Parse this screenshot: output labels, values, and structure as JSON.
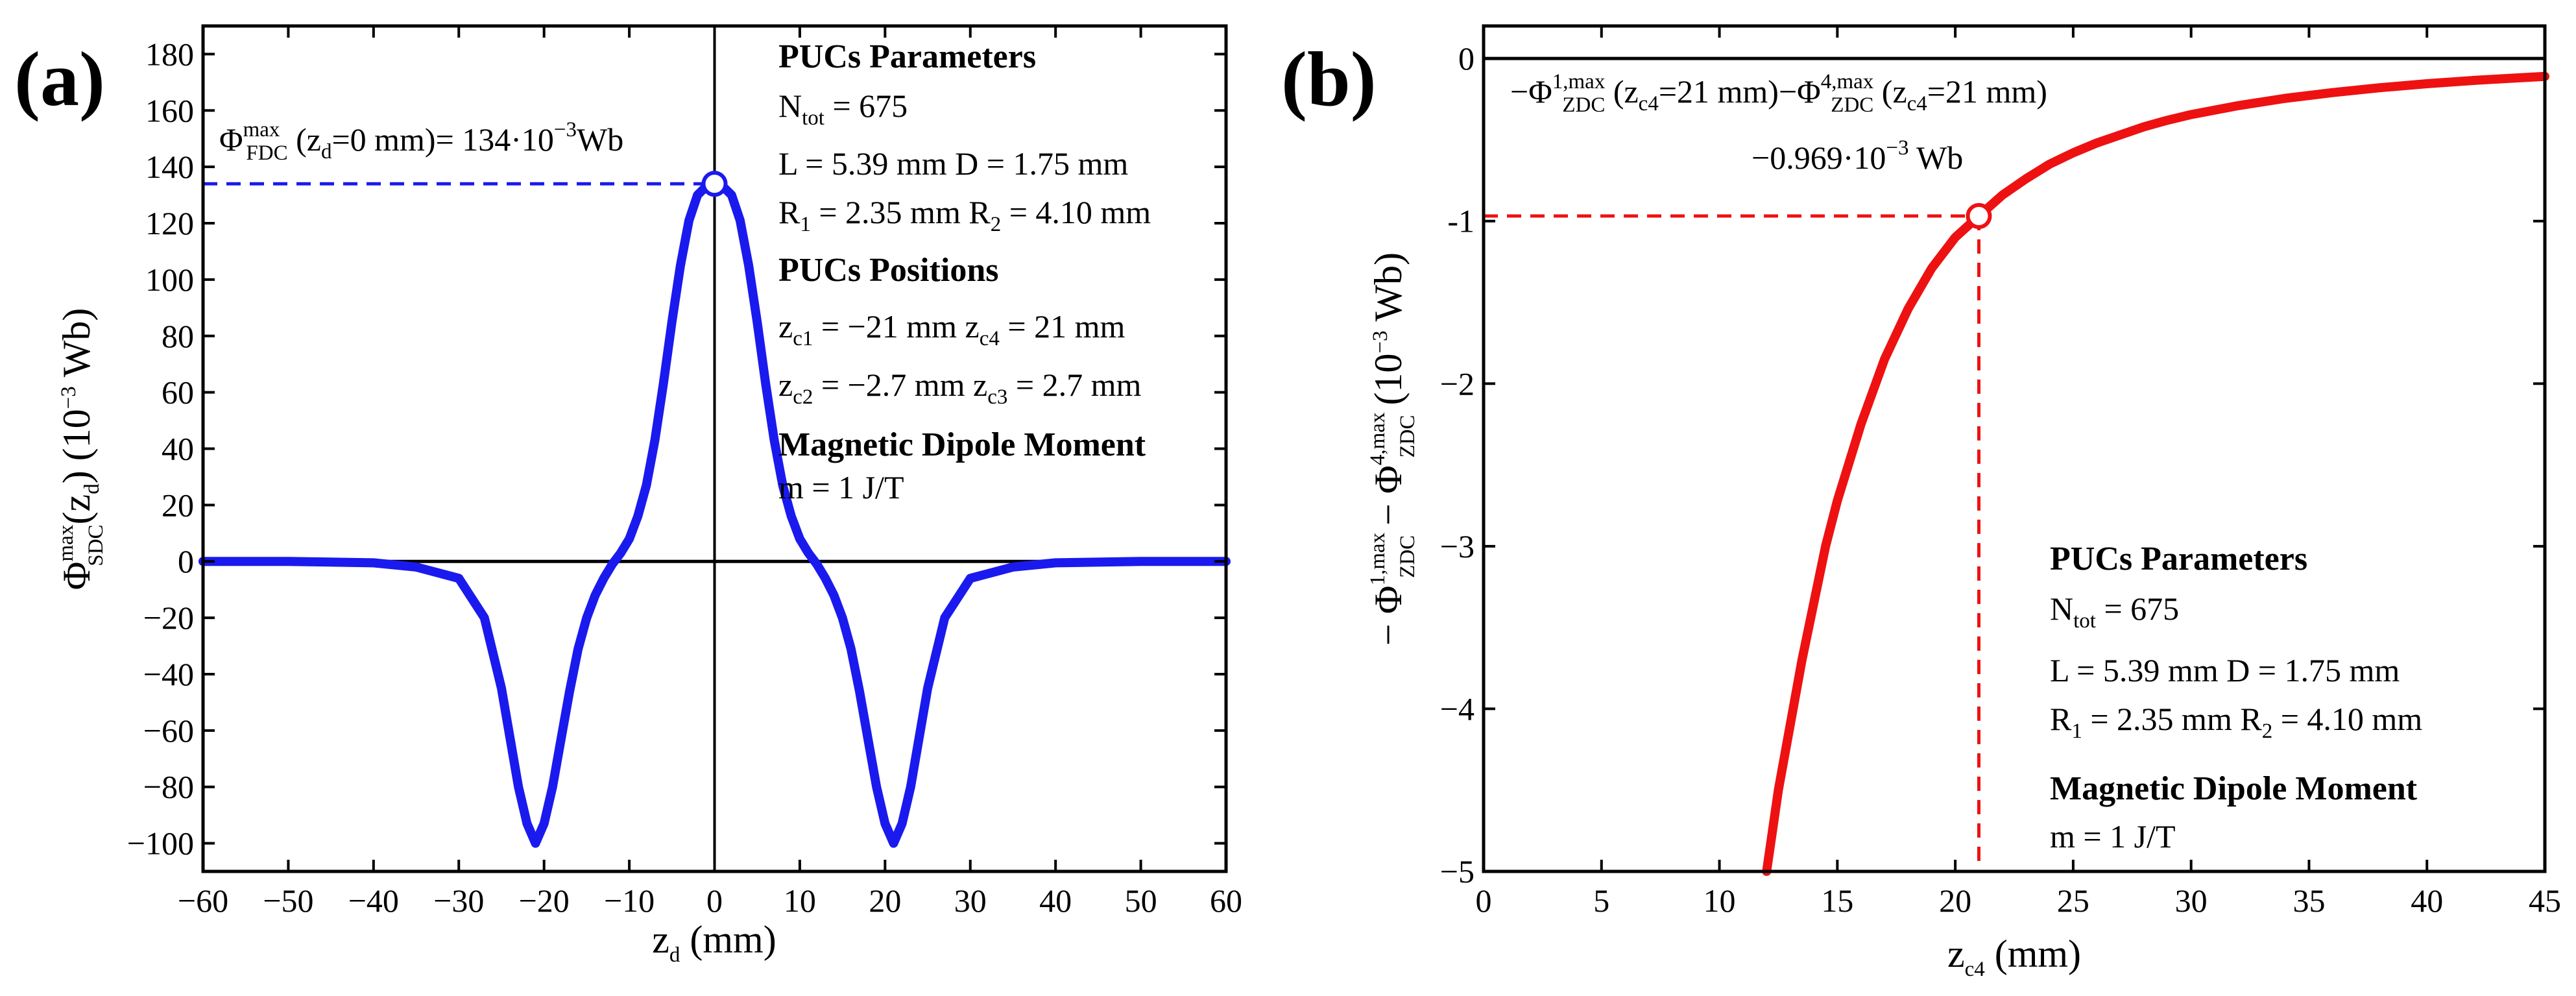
{
  "chart_data": [
    {
      "id": "a",
      "type": "line",
      "panel_label": "(a)",
      "xlabel": {
        "main": "z",
        "sub": "d",
        "rest": " (mm)"
      },
      "ylabel": {
        "phi": "Φ",
        "sup": "max",
        "sub": "SDC",
        "arg1": "(z",
        "argsub": "d",
        "arg2": ") (10",
        "pow": "−3",
        "unit": " Wb)"
      },
      "xlim": [
        -60,
        60
      ],
      "ylim": [
        -110,
        190
      ],
      "xticks": [
        -60,
        -50,
        -40,
        -30,
        -20,
        -10,
        0,
        10,
        20,
        30,
        40,
        50,
        60
      ],
      "xtick_labels": [
        "−60",
        "−50",
        "−40",
        "−30",
        "−20",
        "−10",
        "0",
        "10",
        "20",
        "30",
        "40",
        "50",
        "60"
      ],
      "yticks": [
        -100,
        -80,
        -60,
        -40,
        -20,
        0,
        20,
        40,
        60,
        80,
        100,
        120,
        140,
        160,
        180
      ],
      "ytick_labels": [
        "−100",
        "−80",
        "−60",
        "−40",
        "−20",
        "0",
        "20",
        "40",
        "60",
        "80",
        "100",
        "120",
        "140",
        "160",
        "180"
      ],
      "series": [
        {
          "name": "Φ_SDC^max(z_d)",
          "color": "#1a1aee",
          "x": [
            -60,
            -50,
            -40,
            -35,
            -30,
            -27,
            -25,
            -23,
            -22,
            -21,
            -20,
            -19,
            -18,
            -17,
            -16,
            -15,
            -14,
            -13,
            -12,
            -11,
            -10,
            -9,
            -8,
            -7,
            -6,
            -5,
            -4,
            -3,
            -2,
            -1,
            0,
            1,
            2,
            3,
            4,
            5,
            6,
            7,
            8,
            9,
            10,
            11,
            12,
            13,
            14,
            15,
            16,
            17,
            18,
            19,
            20,
            21,
            22,
            23,
            25,
            27,
            30,
            35,
            40,
            50,
            60
          ],
          "y": [
            0,
            0,
            -0.5,
            -2,
            -6,
            -20,
            -45,
            -80,
            -93,
            -100,
            -93,
            -80,
            -63,
            -46,
            -31,
            -20,
            -12,
            -6,
            -1,
            3,
            8,
            16,
            27,
            43,
            63,
            85,
            105,
            121,
            130,
            133,
            134,
            133,
            130,
            121,
            105,
            85,
            63,
            43,
            27,
            16,
            8,
            3,
            -1,
            -6,
            -12,
            -20,
            -31,
            -46,
            -63,
            -80,
            -93,
            -100,
            -93,
            -80,
            -45,
            -20,
            -6,
            -2,
            -0.5,
            0,
            0
          ]
        }
      ],
      "marker": {
        "x": 0,
        "y": 134
      },
      "annotation": {
        "phi": "Φ",
        "sup": "max",
        "sub": "FDC",
        "text1": " (z",
        "textsub": "d",
        "text2": "=0 mm)= 134·10",
        "pow": "−3",
        "text3": "Wb"
      },
      "legend_box": {
        "h1": "PUCs Parameters",
        "ntot": {
          "a": "N",
          "sub": "tot",
          "b": " = 675"
        },
        "ld": "L = 5.39 mm D = 1.75 mm",
        "r": {
          "a": "R",
          "s1": "1",
          "b": " = 2.35 mm R",
          "s2": "2",
          "c": " = 4.10 mm"
        },
        "h2": "PUCs Positions",
        "z1": {
          "a": "z",
          "s1": "c1",
          "b": " = −21 mm  z",
          "s2": "c4",
          "c": " = 21 mm"
        },
        "z2": {
          "a": "z",
          "s1": "c2",
          "b": " = −2.7 mm z",
          "s2": "c3",
          "c": " = 2.7 mm"
        },
        "h3": "Magnetic Dipole Moment",
        "m": "m = 1 J/T"
      }
    },
    {
      "id": "b",
      "type": "line",
      "panel_label": "(b)",
      "xlabel": {
        "main": "z",
        "sub": "c4",
        "rest": " (mm)"
      },
      "ylabel": {
        "pre": "− Φ",
        "sup1": "1,max",
        "sub1": "ZDC",
        "mid": " − Φ",
        "sup2": "4,max",
        "sub2": "ZDC",
        "rest": " (10",
        "pow": "−3",
        "unit": " Wb)"
      },
      "xlim": [
        0,
        45
      ],
      "ylim": [
        -5,
        0.2
      ],
      "xticks": [
        0,
        5,
        10,
        15,
        20,
        25,
        30,
        35,
        40,
        45
      ],
      "xtick_labels": [
        "0",
        "5",
        "10",
        "15",
        "20",
        "25",
        "30",
        "35",
        "40",
        "45"
      ],
      "yticks": [
        0,
        -1,
        -2,
        -3,
        -4,
        -5
      ],
      "ytick_labels": [
        "0",
        "-1",
        "−2",
        "−3",
        "−4",
        "−5"
      ],
      "series": [
        {
          "name": "−Φ_ZDC^1,max − Φ_ZDC^4,max",
          "color": "#ee1111",
          "x": [
            12.0,
            12.5,
            13,
            13.5,
            14,
            14.5,
            15,
            16,
            17,
            18,
            19,
            20,
            21,
            22,
            23,
            24,
            25,
            26,
            27,
            28,
            29,
            30,
            32,
            34,
            36,
            38,
            40,
            42,
            44,
            45
          ],
          "y": [
            -5.0,
            -4.5,
            -4.1,
            -3.7,
            -3.35,
            -3.0,
            -2.72,
            -2.25,
            -1.85,
            -1.54,
            -1.29,
            -1.1,
            -0.969,
            -0.84,
            -0.74,
            -0.65,
            -0.58,
            -0.52,
            -0.47,
            -0.42,
            -0.38,
            -0.345,
            -0.29,
            -0.245,
            -0.21,
            -0.18,
            -0.155,
            -0.135,
            -0.118,
            -0.11
          ]
        }
      ],
      "marker": {
        "x": 21,
        "y": -0.969
      },
      "annotation1": {
        "m1": "−Φ",
        "sup1": "1,max",
        "sub1": "ZDC",
        "t1": " (z",
        "s1": "c4",
        "t2": "=21 mm)−Φ",
        "sup2": "4,max",
        "sub2": "ZDC",
        "t3": " (z",
        "s2": "c4",
        "t4": "=21 mm)"
      },
      "annotation2": {
        "a": "−0.969·10",
        "pow": "−3",
        "b": " Wb"
      },
      "legend_box": {
        "h1": "PUCs Parameters",
        "ntot": {
          "a": "N",
          "sub": "tot",
          "b": " = 675"
        },
        "ld": "L = 5.39 mm   D = 1.75 mm",
        "r": {
          "a": "R",
          "s1": "1",
          "b": " = 2.35 mm  R",
          "s2": "2",
          "c": " = 4.10 mm"
        },
        "h3": "Magnetic Dipole Moment",
        "m": "m = 1 J/T"
      }
    }
  ]
}
